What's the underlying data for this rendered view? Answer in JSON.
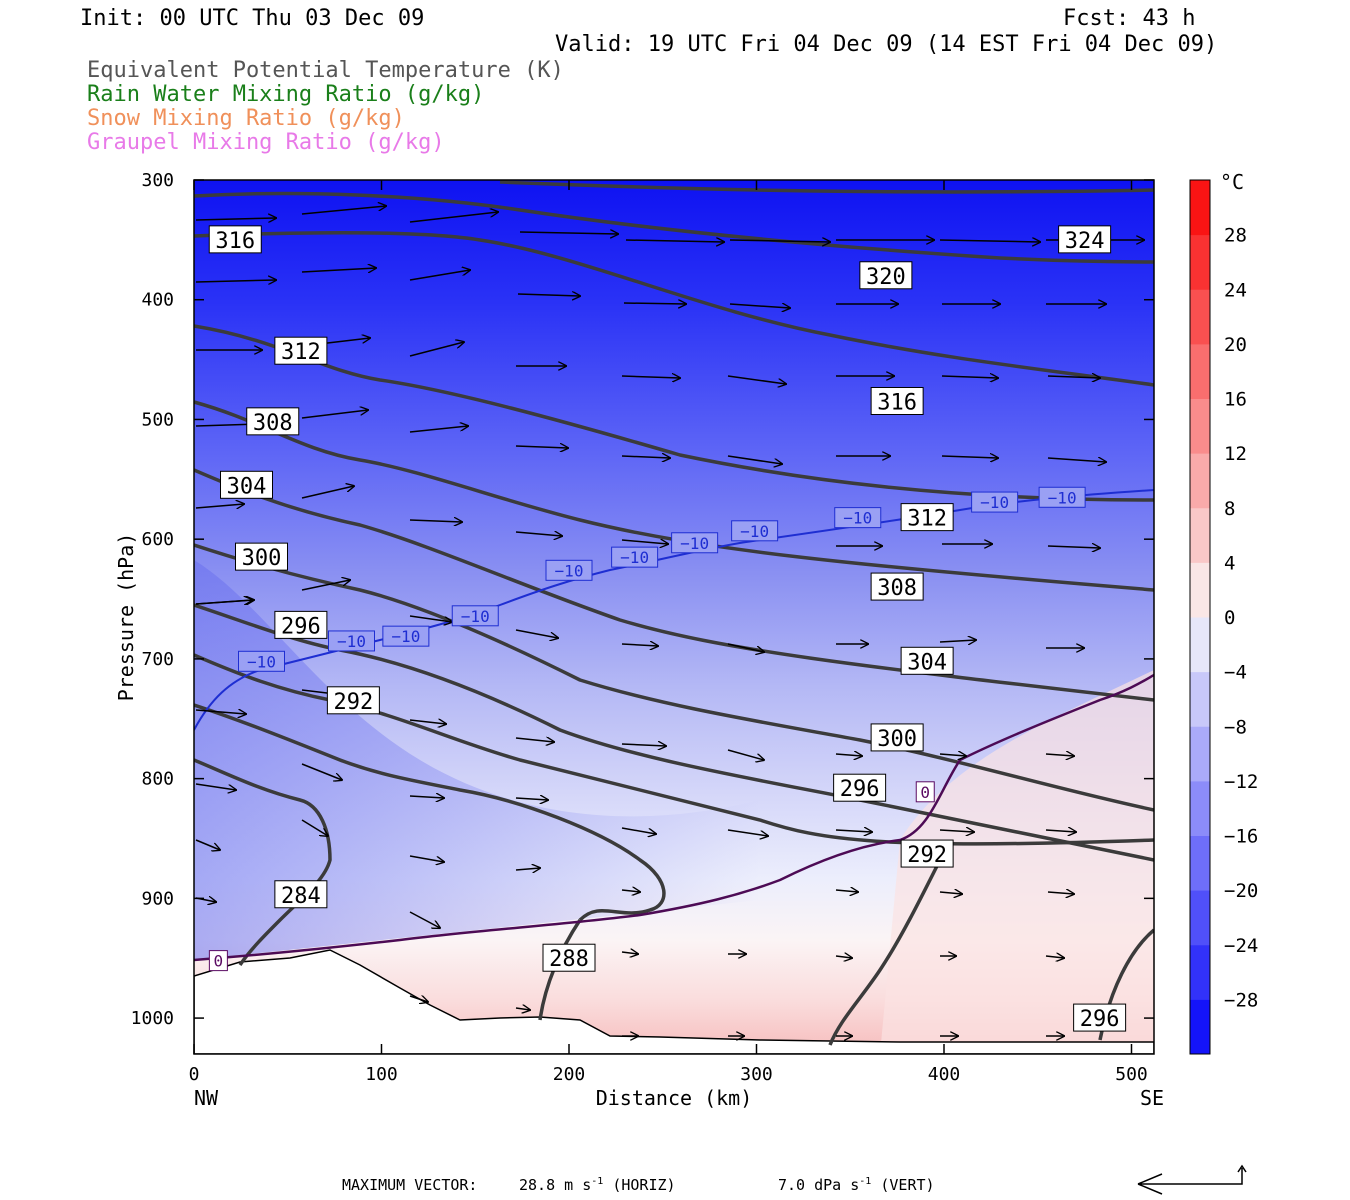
{
  "header": {
    "init": "Init: 00 UTC Thu 03 Dec 09",
    "fcst": "Fcst:   43 h",
    "valid": "Valid: 19 UTC Fri 04 Dec 09 (14 EST Fri 04 Dec 09)"
  },
  "legend": [
    {
      "label": "Equivalent Potential Temperature (K)",
      "color": "#555555"
    },
    {
      "label": "Rain Water Mixing Ratio (g/kg)",
      "color": "#1a7f1a"
    },
    {
      "label": "Snow Mixing Ratio (g/kg)",
      "color": "#f0905a"
    },
    {
      "label": "Graupel Mixing Ratio (g/kg)",
      "color": "#e87ae8"
    }
  ],
  "footer": {
    "vector_prefix": "MAXIMUM VECTOR:",
    "horiz_value": "28.8 m s",
    "horiz_exp": "-1",
    "horiz_suffix": "(HORIZ)",
    "vert_value": "7.0 dPa s",
    "vert_exp": "-1",
    "vert_suffix": "(VERT)"
  },
  "chart_data": {
    "type": "cross-section",
    "xlabel": "Distance (km)",
    "ylabel": "Pressure (hPa)",
    "xlim": [
      0,
      512
    ],
    "ylim": [
      1030,
      300
    ],
    "x_ticks": [
      0,
      100,
      200,
      300,
      400,
      500
    ],
    "y_ticks": [
      300,
      400,
      500,
      600,
      700,
      800,
      900,
      1000
    ],
    "x_end_labels": {
      "left": "NW",
      "right": "SE"
    },
    "colorbar": {
      "unit": "°C",
      "range": [
        -32,
        32
      ],
      "tick_labels": [
        28,
        24,
        20,
        16,
        12,
        8,
        4,
        0,
        -4,
        -8,
        -12,
        -16,
        -20,
        -24,
        -28
      ]
    },
    "theta_e_labels": [
      {
        "text": "316",
        "x": 22,
        "p": 350
      },
      {
        "text": "312",
        "x": 57,
        "p": 443
      },
      {
        "text": "308",
        "x": 42,
        "p": 502
      },
      {
        "text": "304",
        "x": 28,
        "p": 555
      },
      {
        "text": "300",
        "x": 36,
        "p": 615
      },
      {
        "text": "296",
        "x": 57,
        "p": 672
      },
      {
        "text": "292",
        "x": 85,
        "p": 735
      },
      {
        "text": "284",
        "x": 57,
        "p": 897
      },
      {
        "text": "288",
        "x": 200,
        "p": 950
      },
      {
        "text": "320",
        "x": 369,
        "p": 380
      },
      {
        "text": "324",
        "x": 475,
        "p": 350
      },
      {
        "text": "316",
        "x": 375,
        "p": 485
      },
      {
        "text": "312",
        "x": 391,
        "p": 582
      },
      {
        "text": "308",
        "x": 375,
        "p": 640
      },
      {
        "text": "304",
        "x": 391,
        "p": 702
      },
      {
        "text": "300",
        "x": 375,
        "p": 766
      },
      {
        "text": "296",
        "x": 355,
        "p": 808
      },
      {
        "text": "292",
        "x": 391,
        "p": 863
      },
      {
        "text": "296",
        "x": 483,
        "p": 1000
      }
    ],
    "temp_labels": [
      {
        "text": "−10",
        "x": 36,
        "p": 702
      },
      {
        "text": "−10",
        "x": 84,
        "p": 685
      },
      {
        "text": "−10",
        "x": 113,
        "p": 681
      },
      {
        "text": "−10",
        "x": 150,
        "p": 664
      },
      {
        "text": "−10",
        "x": 200,
        "p": 626
      },
      {
        "text": "−10",
        "x": 235,
        "p": 615
      },
      {
        "text": "−10",
        "x": 267,
        "p": 603
      },
      {
        "text": "−10",
        "x": 299,
        "p": 593
      },
      {
        "text": "−10",
        "x": 354,
        "p": 582
      },
      {
        "text": "−10",
        "x": 427,
        "p": 569
      },
      {
        "text": "−10",
        "x": 463,
        "p": 565
      },
      {
        "text": "0",
        "x": 390,
        "p": 811
      },
      {
        "text": "0",
        "x": 13,
        "p": 952
      }
    ]
  }
}
